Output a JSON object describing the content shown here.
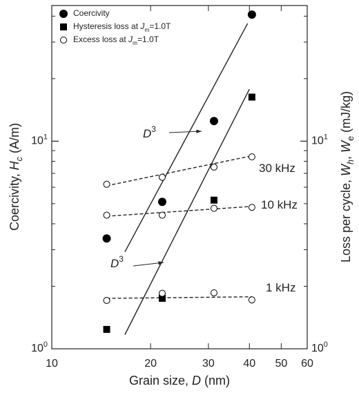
{
  "chart_data": {
    "type": "scatter",
    "log_x": true,
    "log_y": true,
    "x": [
      14.7,
      21.7,
      31.2,
      40.7
    ],
    "series": [
      {
        "name": [
          {
            "text": "Coercivity"
          }
        ],
        "marker": "filled-circle",
        "color": "#000000",
        "values": [
          3.4,
          5.1,
          12.5,
          40.7
        ]
      },
      {
        "name": [
          {
            "text": "Hysteresis loss at "
          },
          {
            "text": "J",
            "style": "italic"
          },
          {
            "text": "m",
            "style": "sub"
          },
          {
            "text": "=1.0T"
          }
        ],
        "marker": "filled-square",
        "color": "#000000",
        "axis": "y2",
        "values": [
          1.24,
          1.75,
          5.2,
          16.3
        ]
      },
      {
        "name": [
          {
            "text": "Excess loss at "
          },
          {
            "text": "J",
            "style": "italic"
          },
          {
            "text": "m",
            "style": "sub"
          },
          {
            "text": "=1.0T"
          }
        ],
        "marker": "open-circle",
        "color": "#000000",
        "axis": "y2",
        "values": [
          6.2,
          6.7,
          7.5,
          8.4
        ]
      },
      {
        "marker": "open-circle",
        "color": "#000000",
        "axis": "y2",
        "values": [
          4.4,
          4.4,
          4.75,
          4.8
        ]
      },
      {
        "marker": "open-circle",
        "color": "#000000",
        "axis": "y2",
        "values": [
          1.71,
          1.85,
          1.86,
          1.72
        ]
      }
    ],
    "fits": [
      {
        "x": [
          16.7,
          39.5
        ],
        "values": [
          2.93,
          36.9
        ],
        "dash": false
      },
      {
        "x": [
          16.7,
          40
        ],
        "values": [
          1.17,
          17.8
        ],
        "dash": false
      },
      {
        "x": [
          14.7,
          40.7
        ],
        "values": [
          6.1,
          8.5
        ],
        "dash": true
      },
      {
        "x": [
          14.7,
          40.7
        ],
        "values": [
          4.35,
          4.85
        ],
        "dash": true
      },
      {
        "x": [
          14.7,
          40.7
        ],
        "values": [
          1.75,
          1.78
        ],
        "dash": true
      }
    ],
    "annotations": [
      {
        "parts": [
          {
            "text": "D",
            "style": "italic"
          },
          {
            "text": "3",
            "style": "sup"
          }
        ],
        "arrow": true
      },
      {
        "parts": [
          {
            "text": "D",
            "style": "italic"
          },
          {
            "text": "3",
            "style": "sup"
          }
        ],
        "arrow": true
      },
      {
        "parts": [
          {
            "text": "30 kHz"
          }
        ],
        "arrow": false
      },
      {
        "parts": [
          {
            "text": "10 kHz"
          }
        ],
        "arrow": false
      },
      {
        "parts": [
          {
            "text": "1 kHz"
          }
        ],
        "arrow": false
      }
    ],
    "xlabel": [
      {
        "text": "Grain size, "
      },
      {
        "text": "D",
        "style": "italic"
      },
      {
        "text": " (nm)"
      }
    ],
    "ylabel": [
      {
        "text": "Coercivity, "
      },
      {
        "text": "H",
        "style": "italic"
      },
      {
        "text": "c",
        "style": "italic-sub"
      },
      {
        "text": " (A/m)"
      }
    ],
    "y2label": [
      {
        "text": "Loss per cycle, "
      },
      {
        "text": "W",
        "style": "italic"
      },
      {
        "text": "h",
        "style": "italic-sub"
      },
      {
        "text": ", "
      },
      {
        "text": "W",
        "style": "italic"
      },
      {
        "text": "e",
        "style": "sub"
      },
      {
        "text": " (mJ/kg)"
      }
    ],
    "xlim": [
      10,
      60
    ],
    "xticks": [
      10,
      20,
      30,
      40,
      50,
      60
    ],
    "ylim": [
      1,
      45
    ],
    "yticks": [
      {
        "value": 1,
        "label": "10",
        "exp": "0"
      },
      {
        "value": 10,
        "label": "10",
        "exp": "1"
      }
    ],
    "y_minor_ticks": [
      2,
      3,
      4,
      5,
      6,
      7,
      8,
      9,
      20,
      30,
      40
    ],
    "y2lim": [
      1,
      45
    ],
    "y2ticks": [
      {
        "value": 1,
        "label": "10",
        "exp": "0"
      },
      {
        "value": 10,
        "label": "10",
        "exp": "1"
      }
    ],
    "legend": "upper-left"
  }
}
